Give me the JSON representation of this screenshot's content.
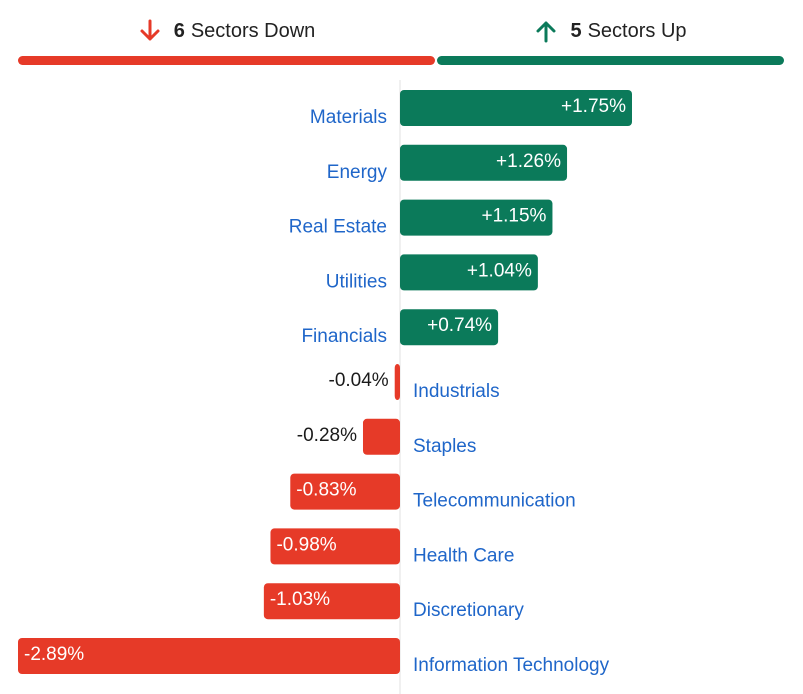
{
  "summary": {
    "down": {
      "count": "6",
      "label": "Sectors Down",
      "color": "#e63a28",
      "icon": "arrow-down-icon"
    },
    "up": {
      "count": "5",
      "label": "Sectors Up",
      "color": "#0b7a5a",
      "icon": "arrow-up-icon"
    }
  },
  "chart_data": {
    "type": "bar",
    "orientation": "horizontal",
    "categories": [
      "Materials",
      "Energy",
      "Real Estate",
      "Utilities",
      "Financials",
      "Industrials",
      "Staples",
      "Telecommunication",
      "Health Care",
      "Discretionary",
      "Information Technology"
    ],
    "values": [
      1.75,
      1.26,
      1.15,
      1.04,
      0.74,
      -0.04,
      -0.28,
      -0.83,
      -0.98,
      -1.03,
      -2.89
    ],
    "labels": [
      "+1.75%",
      "+1.26%",
      "+1.15%",
      "+1.04%",
      "+0.74%",
      "-0.04%",
      "-0.28%",
      "-0.83%",
      "-0.98%",
      "-1.03%",
      "-2.89%"
    ],
    "xlim": [
      -2.89,
      1.75
    ],
    "grid": false,
    "colors": {
      "positive": "#0b7a5a",
      "negative": "#e63a28",
      "category_label": "#1f66c9",
      "axis": "#e2e2e2"
    }
  }
}
